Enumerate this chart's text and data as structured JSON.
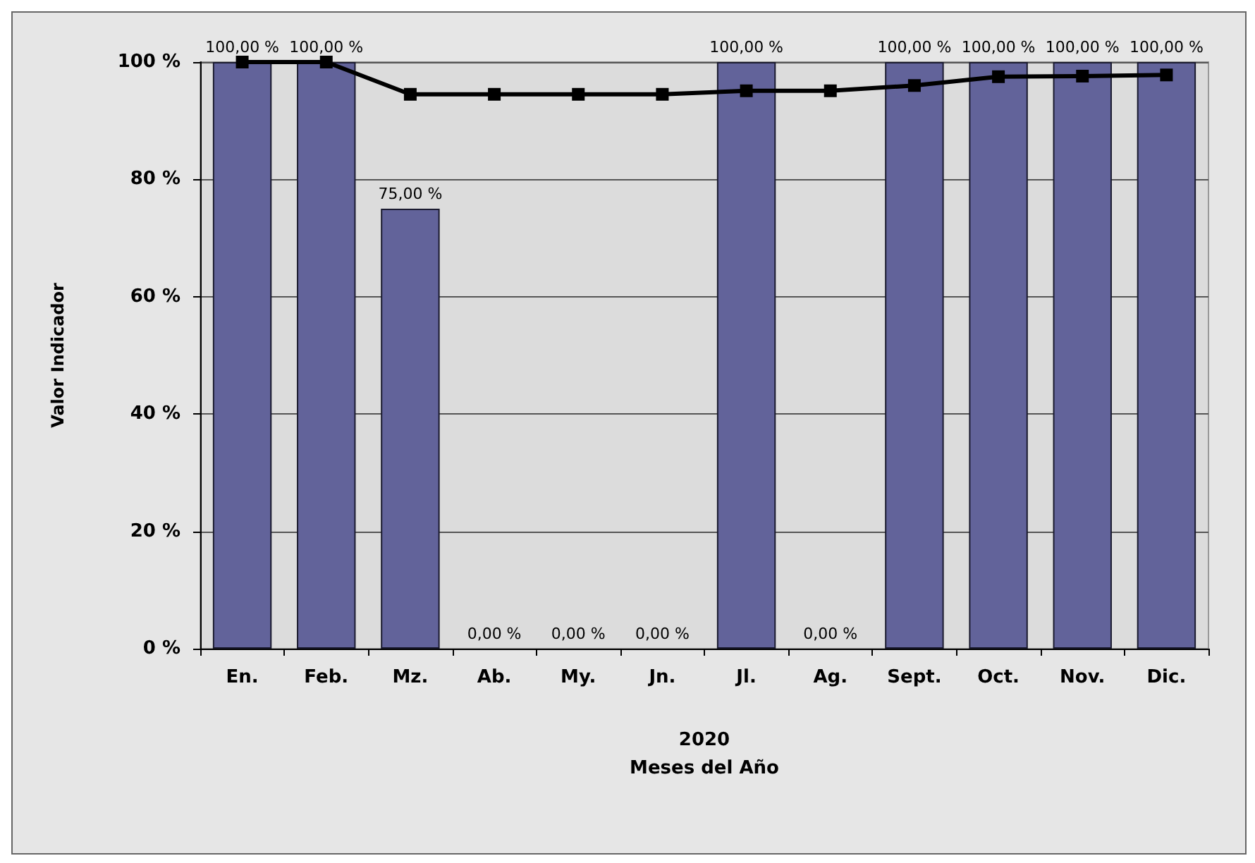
{
  "chart_data": {
    "type": "bar",
    "xlabel": "2020\nMeses del Año",
    "ylabel": "Valor Indicador",
    "categories": [
      "En.",
      "Feb.",
      "Mz.",
      "Ab.",
      "My.",
      "Jn.",
      "Jl.",
      "Ag.",
      "Sept.",
      "Oct.",
      "Nov.",
      "Dic."
    ],
    "series": [
      {
        "color": "#62639a",
        "values": [
          100,
          100,
          75,
          0,
          0,
          0,
          100,
          0,
          100,
          100,
          100,
          100
        ],
        "value_labels": [
          "100,00 %",
          "100,00 %",
          "75,00 %",
          "0,00 %",
          "0,00 %",
          "0,00 %",
          "100,00 %",
          "0,00 %",
          "100,00 %",
          "100,00 %",
          "100,00 %",
          "100,00 %"
        ]
      },
      {
        "type": "line",
        "color": "#000000",
        "values": [
          100,
          100,
          94.5,
          94.5,
          94.5,
          94.5,
          95.1,
          95.1,
          96,
          97.5,
          97.6,
          97.8
        ],
        "marker": "square"
      }
    ],
    "ylim": [
      0,
      100
    ],
    "yticks": [
      {
        "value": 0,
        "label": "0 %"
      },
      {
        "value": 20,
        "label": "20 %"
      },
      {
        "value": 40,
        "label": "40 %"
      },
      {
        "value": 60,
        "label": "60 %"
      },
      {
        "value": 80,
        "label": "80 %"
      },
      {
        "value": 100,
        "label": "100 %"
      }
    ],
    "grid": "y"
  }
}
